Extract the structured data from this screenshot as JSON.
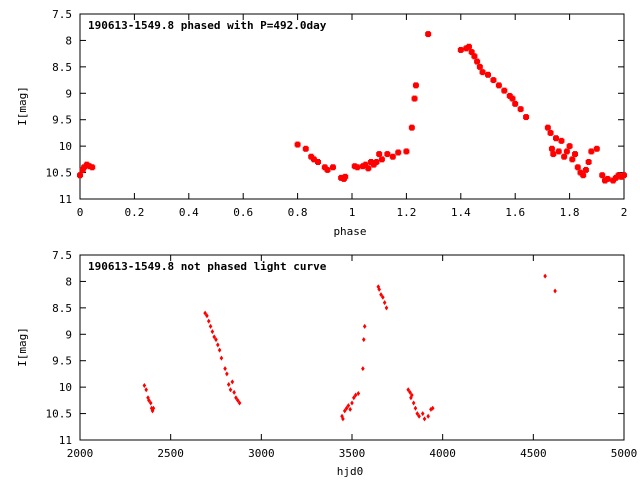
{
  "chart_data": [
    {
      "type": "scatter",
      "title": "190613-1549.8 phased with P=492.0day",
      "xlabel": "phase",
      "ylabel": "I[mag]",
      "xlim": [
        0,
        2
      ],
      "ylim": [
        11,
        7.5
      ],
      "y_inverted": true,
      "xticks": [
        0,
        0.2,
        0.4,
        0.6,
        0.8,
        1,
        1.2,
        1.4,
        1.6,
        1.8,
        2
      ],
      "xtick_labels": [
        "0",
        "0.2",
        "0.4",
        "0.6",
        "0.8",
        "1",
        "1.2",
        "1.4",
        "1.6",
        "1.8",
        "2"
      ],
      "yticks": [
        7.5,
        8,
        8.5,
        9,
        9.5,
        10,
        10.5,
        11
      ],
      "ytick_labels": [
        "7.5",
        "8",
        "8.5",
        "9",
        "9.5",
        "10",
        "10.5",
        "11"
      ],
      "grid": false,
      "marker_color": "#ff0000",
      "points": [
        [
          0.0,
          10.55
        ],
        [
          0.01,
          10.45
        ],
        [
          0.015,
          10.4
        ],
        [
          0.025,
          10.35
        ],
        [
          0.035,
          10.38
        ],
        [
          0.045,
          10.4
        ],
        [
          0.8,
          9.97
        ],
        [
          0.83,
          10.05
        ],
        [
          0.85,
          10.2
        ],
        [
          0.86,
          10.25
        ],
        [
          0.875,
          10.3
        ],
        [
          0.9,
          10.4
        ],
        [
          0.91,
          10.45
        ],
        [
          0.93,
          10.4
        ],
        [
          0.96,
          10.6
        ],
        [
          0.97,
          10.62
        ],
        [
          0.975,
          10.58
        ],
        [
          1.01,
          10.38
        ],
        [
          1.02,
          10.4
        ],
        [
          1.04,
          10.38
        ],
        [
          1.05,
          10.35
        ],
        [
          1.06,
          10.42
        ],
        [
          1.07,
          10.3
        ],
        [
          1.08,
          10.35
        ],
        [
          1.09,
          10.3
        ],
        [
          1.1,
          10.15
        ],
        [
          1.11,
          10.25
        ],
        [
          1.13,
          10.15
        ],
        [
          1.15,
          10.2
        ],
        [
          1.17,
          10.12
        ],
        [
          1.2,
          10.1
        ],
        [
          1.22,
          9.65
        ],
        [
          1.23,
          9.1
        ],
        [
          1.235,
          8.85
        ],
        [
          1.28,
          7.88
        ],
        [
          1.4,
          8.18
        ],
        [
          1.42,
          8.15
        ],
        [
          1.43,
          8.12
        ],
        [
          1.44,
          8.22
        ],
        [
          1.45,
          8.3
        ],
        [
          1.46,
          8.4
        ],
        [
          1.47,
          8.5
        ],
        [
          1.48,
          8.6
        ],
        [
          1.5,
          8.65
        ],
        [
          1.52,
          8.75
        ],
        [
          1.54,
          8.85
        ],
        [
          1.56,
          8.95
        ],
        [
          1.58,
          9.05
        ],
        [
          1.59,
          9.1
        ],
        [
          1.6,
          9.2
        ],
        [
          1.62,
          9.3
        ],
        [
          1.64,
          9.45
        ],
        [
          1.72,
          9.65
        ],
        [
          1.73,
          9.75
        ],
        [
          1.735,
          10.05
        ],
        [
          1.74,
          10.15
        ],
        [
          1.75,
          9.85
        ],
        [
          1.76,
          10.1
        ],
        [
          1.77,
          9.9
        ],
        [
          1.78,
          10.2
        ],
        [
          1.79,
          10.1
        ],
        [
          1.8,
          10.0
        ],
        [
          1.81,
          10.25
        ],
        [
          1.82,
          10.15
        ],
        [
          1.83,
          10.4
        ],
        [
          1.84,
          10.5
        ],
        [
          1.85,
          10.55
        ],
        [
          1.86,
          10.45
        ],
        [
          1.87,
          10.3
        ],
        [
          1.88,
          10.1
        ],
        [
          1.9,
          10.05
        ],
        [
          1.92,
          10.55
        ],
        [
          1.93,
          10.65
        ],
        [
          1.94,
          10.62
        ],
        [
          1.96,
          10.65
        ],
        [
          1.97,
          10.6
        ],
        [
          1.98,
          10.55
        ],
        [
          1.99,
          10.58
        ],
        [
          2.0,
          10.55
        ]
      ]
    },
    {
      "type": "scatter",
      "title": "190613-1549.8 not phased light curve",
      "xlabel": "hjd0",
      "ylabel": "I[mag]",
      "xlim": [
        2000,
        5000
      ],
      "ylim": [
        11,
        7.5
      ],
      "y_inverted": true,
      "xticks": [
        2000,
        2500,
        3000,
        3500,
        4000,
        4500,
        5000
      ],
      "xtick_labels": [
        "2000",
        "2500",
        "3000",
        "3500",
        "4000",
        "4500",
        "5000"
      ],
      "yticks": [
        7.5,
        8,
        8.5,
        9,
        9.5,
        10,
        10.5,
        11
      ],
      "ytick_labels": [
        "7.5",
        "8",
        "8.5",
        "9",
        "9.5",
        "10",
        "10.5",
        "11"
      ],
      "grid": false,
      "marker_color": "#ff0000",
      "points": [
        [
          2355,
          9.97
        ],
        [
          2365,
          10.05
        ],
        [
          2375,
          10.2
        ],
        [
          2380,
          10.25
        ],
        [
          2390,
          10.3
        ],
        [
          2395,
          10.4
        ],
        [
          2400,
          10.45
        ],
        [
          2405,
          10.4
        ],
        [
          2690,
          8.6
        ],
        [
          2700,
          8.65
        ],
        [
          2710,
          8.75
        ],
        [
          2720,
          8.85
        ],
        [
          2730,
          8.95
        ],
        [
          2740,
          9.05
        ],
        [
          2750,
          9.1
        ],
        [
          2760,
          9.2
        ],
        [
          2770,
          9.3
        ],
        [
          2780,
          9.45
        ],
        [
          2800,
          9.65
        ],
        [
          2810,
          9.75
        ],
        [
          2820,
          9.95
        ],
        [
          2830,
          10.05
        ],
        [
          2840,
          9.9
        ],
        [
          2850,
          10.1
        ],
        [
          2860,
          10.2
        ],
        [
          2870,
          10.25
        ],
        [
          2880,
          10.3
        ],
        [
          3445,
          10.55
        ],
        [
          3450,
          10.6
        ],
        [
          3460,
          10.45
        ],
        [
          3470,
          10.4
        ],
        [
          3480,
          10.35
        ],
        [
          3490,
          10.42
        ],
        [
          3500,
          10.3
        ],
        [
          3510,
          10.2
        ],
        [
          3520,
          10.15
        ],
        [
          3535,
          10.12
        ],
        [
          3560,
          9.65
        ],
        [
          3565,
          9.1
        ],
        [
          3570,
          8.85
        ],
        [
          3645,
          8.1
        ],
        [
          3650,
          8.15
        ],
        [
          3660,
          8.25
        ],
        [
          3670,
          8.3
        ],
        [
          3680,
          8.4
        ],
        [
          3690,
          8.5
        ],
        [
          3810,
          10.05
        ],
        [
          3820,
          10.1
        ],
        [
          3825,
          10.2
        ],
        [
          3830,
          10.15
        ],
        [
          3840,
          10.3
        ],
        [
          3850,
          10.4
        ],
        [
          3860,
          10.5
        ],
        [
          3870,
          10.55
        ],
        [
          3890,
          10.5
        ],
        [
          3900,
          10.6
        ],
        [
          3920,
          10.55
        ],
        [
          3935,
          10.42
        ],
        [
          3945,
          10.4
        ],
        [
          4565,
          7.9
        ],
        [
          4620,
          8.18
        ]
      ]
    }
  ]
}
